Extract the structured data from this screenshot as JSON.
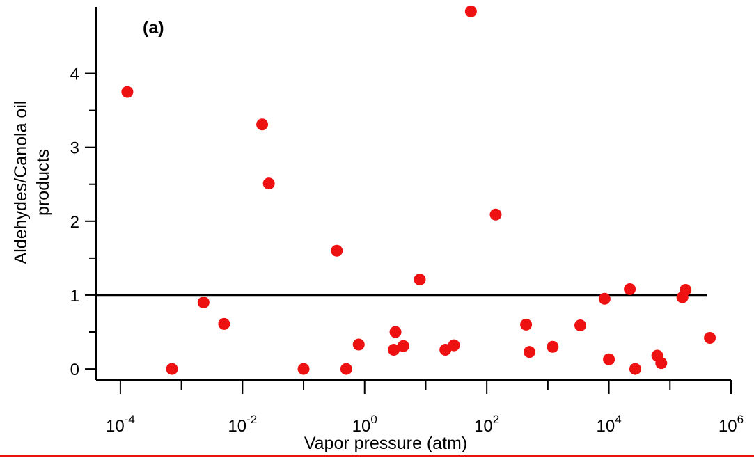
{
  "chart_data": {
    "type": "scatter",
    "panel_label": "(a)",
    "xlabel": "Vapor pressure (atm)",
    "ylabel_lines": [
      "Aldehydes/Canola oil",
      "products"
    ],
    "x_scale": "log",
    "xlim": [
      4e-05,
      1000000.0
    ],
    "ylim": [
      -0.15,
      4.9
    ],
    "x_ticks": [
      {
        "value": 0.0001,
        "base": "10",
        "exp": "-4"
      },
      {
        "value": 0.01,
        "base": "10",
        "exp": "-2"
      },
      {
        "value": 1,
        "base": "10",
        "exp": "0"
      },
      {
        "value": 100,
        "base": "10",
        "exp": "2"
      },
      {
        "value": 10000,
        "base": "10",
        "exp": "4"
      },
      {
        "value": 1000000,
        "base": "10",
        "exp": "6"
      }
    ],
    "y_ticks": [
      0,
      1,
      2,
      3,
      4
    ],
    "reference_line": {
      "y": 1,
      "x_start": 4e-05,
      "x_end": 400000.0,
      "color": "#000000"
    },
    "point_color": "#ee1111",
    "points": [
      {
        "x": 0.00013,
        "y": 3.75
      },
      {
        "x": 0.0007,
        "y": 0.0
      },
      {
        "x": 0.0023,
        "y": 0.9
      },
      {
        "x": 0.005,
        "y": 0.61
      },
      {
        "x": 0.021,
        "y": 3.31
      },
      {
        "x": 0.027,
        "y": 2.51
      },
      {
        "x": 0.1,
        "y": 0.0
      },
      {
        "x": 0.35,
        "y": 1.6
      },
      {
        "x": 0.5,
        "y": 0.0
      },
      {
        "x": 0.8,
        "y": 0.33
      },
      {
        "x": 3.0,
        "y": 0.26
      },
      {
        "x": 3.2,
        "y": 0.5
      },
      {
        "x": 4.3,
        "y": 0.31
      },
      {
        "x": 8.0,
        "y": 1.21
      },
      {
        "x": 21,
        "y": 0.26
      },
      {
        "x": 29,
        "y": 0.32
      },
      {
        "x": 55,
        "y": 4.84
      },
      {
        "x": 140,
        "y": 2.09
      },
      {
        "x": 440,
        "y": 0.6
      },
      {
        "x": 500,
        "y": 0.23
      },
      {
        "x": 1200,
        "y": 0.3
      },
      {
        "x": 3400,
        "y": 0.59
      },
      {
        "x": 8500,
        "y": 0.95
      },
      {
        "x": 10000,
        "y": 0.13
      },
      {
        "x": 22000,
        "y": 1.08
      },
      {
        "x": 27000,
        "y": 0.0
      },
      {
        "x": 62000,
        "y": 0.18
      },
      {
        "x": 72000,
        "y": 0.08
      },
      {
        "x": 160000,
        "y": 0.97
      },
      {
        "x": 180000,
        "y": 1.07
      },
      {
        "x": 450000,
        "y": 0.42
      }
    ]
  }
}
